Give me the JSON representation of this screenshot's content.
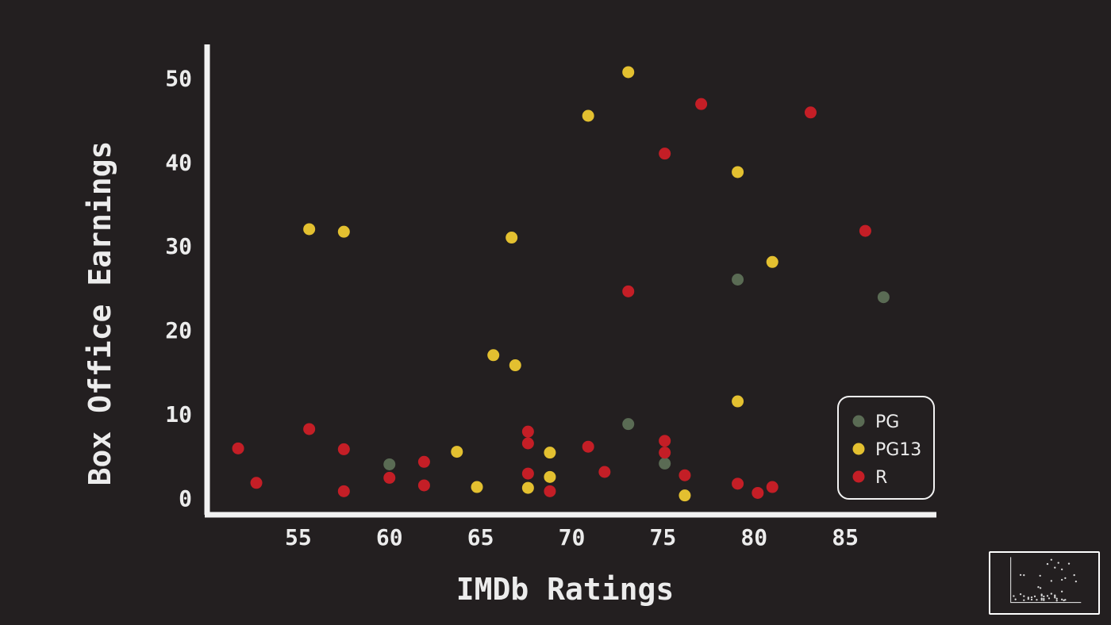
{
  "chart_data": {
    "type": "scatter",
    "title": "",
    "xlabel": "IMDb Ratings",
    "ylabel": "Box Office Earnings",
    "xlim": [
      50,
      90
    ],
    "ylim": [
      -2,
      54
    ],
    "xticks": [
      55,
      60,
      65,
      70,
      75,
      80,
      85
    ],
    "yticks": [
      0,
      10,
      20,
      30,
      40,
      50
    ],
    "grid": false,
    "legend_position": "bottom-right",
    "series": [
      {
        "name": "PG",
        "color": "#5a6b54",
        "points": [
          [
            60,
            4
          ],
          [
            73.1,
            8.8
          ],
          [
            75.1,
            4.1
          ],
          [
            79.1,
            26
          ],
          [
            87.1,
            23.9
          ]
        ]
      },
      {
        "name": "PG13",
        "color": "#e3c030",
        "points": [
          [
            55.6,
            32
          ],
          [
            57.5,
            31.7
          ],
          [
            63.7,
            5.5
          ],
          [
            64.8,
            1.3
          ],
          [
            65.7,
            17
          ],
          [
            66.7,
            31
          ],
          [
            66.9,
            15.8
          ],
          [
            67.6,
            1.2
          ],
          [
            68.8,
            2.5
          ],
          [
            68.8,
            5.4
          ],
          [
            70.9,
            45.5
          ],
          [
            73.1,
            50.7
          ],
          [
            76.2,
            0.3
          ],
          [
            79.1,
            38.8
          ],
          [
            79.1,
            11.5
          ],
          [
            81,
            28.1
          ]
        ]
      },
      {
        "name": "R",
        "color": "#c41e26",
        "points": [
          [
            51.7,
            5.9
          ],
          [
            52.7,
            1.8
          ],
          [
            55.6,
            8.2
          ],
          [
            57.5,
            5.8
          ],
          [
            57.5,
            0.8
          ],
          [
            60,
            2.4
          ],
          [
            61.9,
            4.3
          ],
          [
            61.9,
            1.5
          ],
          [
            67.6,
            7.9
          ],
          [
            67.6,
            6.5
          ],
          [
            67.6,
            2.9
          ],
          [
            68.8,
            0.8
          ],
          [
            70.9,
            6.1
          ],
          [
            71.8,
            3.1
          ],
          [
            73.1,
            24.6
          ],
          [
            75.1,
            41
          ],
          [
            75.1,
            6.8
          ],
          [
            75.1,
            5.4
          ],
          [
            76.2,
            2.7
          ],
          [
            77.1,
            46.9
          ],
          [
            79.1,
            1.7
          ],
          [
            80.2,
            0.6
          ],
          [
            81,
            1.3
          ],
          [
            83.1,
            45.9
          ],
          [
            86.1,
            31.8
          ]
        ]
      }
    ]
  }
}
